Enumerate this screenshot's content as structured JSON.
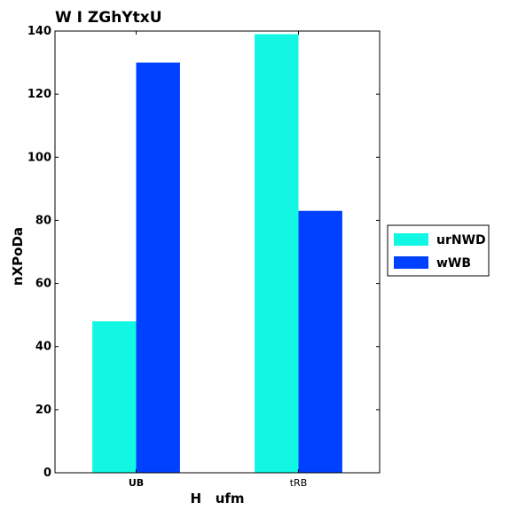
{
  "chart_data": {
    "type": "bar",
    "title": "W I ZGhYtxU",
    "xlabel": "H   ufm",
    "ylabel": "nXPoDa",
    "categories": [
      "UB",
      "tRB"
    ],
    "series": [
      {
        "name": "urNWD",
        "values": [
          48,
          139
        ],
        "color": "#11f7e3"
      },
      {
        "name": "wWB",
        "values": [
          130,
          83
        ],
        "color": "#0040ff"
      }
    ],
    "ylim": [
      0,
      140
    ],
    "yticks": [
      "0",
      "20",
      "40",
      "60",
      "80",
      "100",
      "120",
      "140"
    ],
    "legend_position": "right",
    "grid": false
  }
}
